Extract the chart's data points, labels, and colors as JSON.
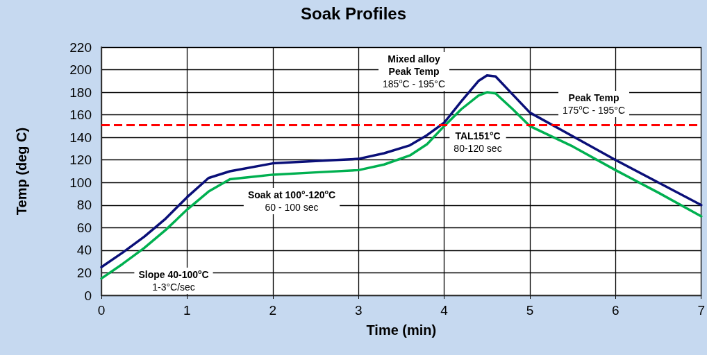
{
  "chart_data": {
    "type": "line",
    "title": "Soak Profiles",
    "xlabel": "Time (min)",
    "ylabel": "Temp (deg C)",
    "xlim": [
      0,
      7
    ],
    "xticks": [
      0,
      1,
      2,
      3,
      4,
      5,
      6,
      7
    ],
    "ylim": [
      0,
      220
    ],
    "yticks": [
      0,
      20,
      40,
      60,
      80,
      100,
      120,
      140,
      160,
      180,
      200,
      220
    ],
    "grid": true,
    "marker": "none",
    "line_style": "solid",
    "series": [
      {
        "color": "#0a0f78",
        "x": [
          0,
          0.25,
          0.5,
          0.75,
          1,
          1.25,
          1.5,
          2,
          2.5,
          3,
          3.3,
          3.6,
          3.8,
          4,
          4.2,
          4.4,
          4.5,
          4.6,
          4.8,
          5,
          5.5,
          6,
          6.5,
          7
        ],
        "values": [
          25,
          38,
          52,
          68,
          87,
          104,
          110,
          117,
          119,
          121,
          126,
          133,
          142,
          153,
          172,
          190,
          195,
          194,
          178,
          162,
          141,
          120,
          100,
          80
        ]
      },
      {
        "color": "#00b050",
        "x": [
          0,
          0.25,
          0.5,
          0.75,
          1,
          1.25,
          1.5,
          2,
          2.5,
          3,
          3.3,
          3.6,
          3.8,
          4,
          4.2,
          4.4,
          4.5,
          4.6,
          4.8,
          5,
          5.5,
          6,
          6.5,
          7
        ],
        "values": [
          15,
          28,
          42,
          58,
          76,
          92,
          103,
          107,
          109,
          111,
          116,
          124,
          134,
          150,
          165,
          177,
          180,
          179,
          165,
          150,
          132,
          111,
          91,
          70
        ]
      }
    ],
    "ref_lines": [
      {
        "axis": "y",
        "value": 151,
        "color": "#ff0000",
        "line_style": "dashed"
      }
    ],
    "annotations": [
      "Slope 40-100$^{o}$C\n1-3°C/sec",
      "Soak at 100°-120$^{o}$C\n60 - 100 sec",
      "Mixed alloy\nPeak Temp\n185$^{o}$C - 195°C",
      "TAL151°C\n80-120 sec",
      "Peak Temp\n175$^{o}$C - 195°C"
    ]
  }
}
